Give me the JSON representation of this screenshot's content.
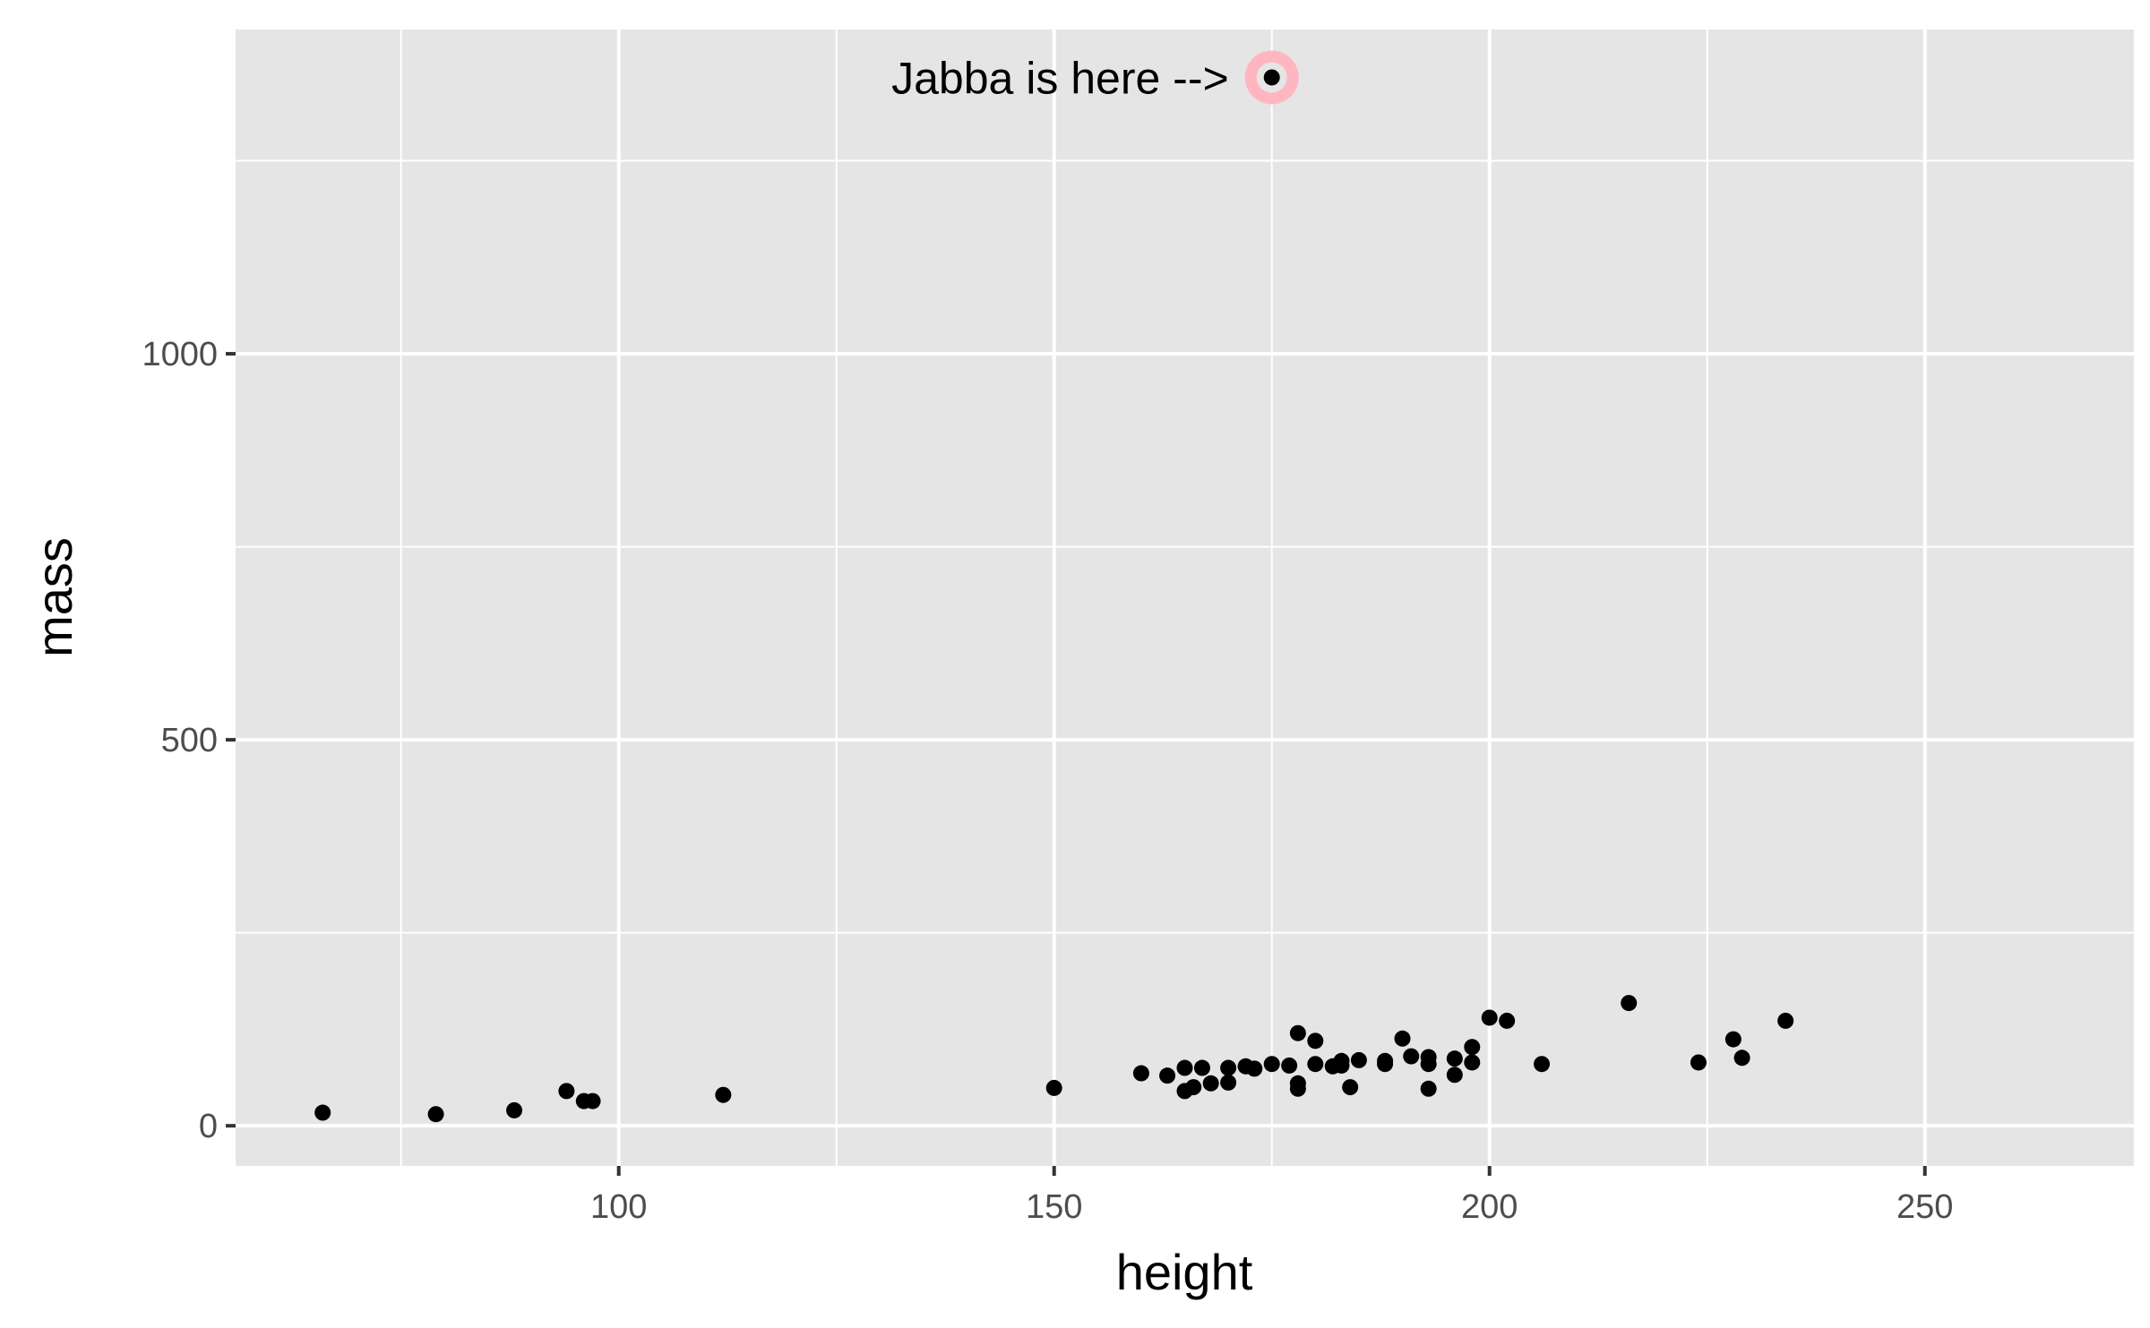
{
  "chart_data": {
    "type": "scatter",
    "title": "",
    "xlabel": "height",
    "ylabel": "mass",
    "xlim": [
      56,
      274
    ],
    "ylim": [
      -52,
      1420
    ],
    "x_major_ticks": [
      100,
      150,
      200,
      250
    ],
    "x_minor_ticks": [
      75,
      125,
      175,
      225
    ],
    "y_major_ticks": [
      0,
      500,
      1000
    ],
    "y_minor_ticks": [
      250,
      750,
      1250
    ],
    "grid": true,
    "legend": "none",
    "colors": {
      "panel_background": "#e5e5e5",
      "grid": "#ffffff",
      "point": "#000000",
      "highlight_ring": "#ffb6c1"
    },
    "annotation": {
      "text": "Jabba is here -->",
      "x": 175,
      "y": 1358
    },
    "highlight_point": {
      "x": 175,
      "y": 1358
    },
    "points": [
      {
        "x": 66,
        "y": 17
      },
      {
        "x": 79,
        "y": 15
      },
      {
        "x": 88,
        "y": 20
      },
      {
        "x": 94,
        "y": 45
      },
      {
        "x": 96,
        "y": 32
      },
      {
        "x": 97,
        "y": 32
      },
      {
        "x": 112,
        "y": 40
      },
      {
        "x": 150,
        "y": 49
      },
      {
        "x": 160,
        "y": 68
      },
      {
        "x": 163,
        "y": 65
      },
      {
        "x": 165,
        "y": 45
      },
      {
        "x": 165,
        "y": 75
      },
      {
        "x": 166,
        "y": 50
      },
      {
        "x": 167,
        "y": 75
      },
      {
        "x": 168,
        "y": 55
      },
      {
        "x": 170,
        "y": 56
      },
      {
        "x": 170,
        "y": 75
      },
      {
        "x": 172,
        "y": 77
      },
      {
        "x": 173,
        "y": 74
      },
      {
        "x": 175,
        "y": 80
      },
      {
        "x": 175,
        "y": 1358
      },
      {
        "x": 177,
        "y": 78
      },
      {
        "x": 178,
        "y": 48
      },
      {
        "x": 178,
        "y": 55
      },
      {
        "x": 178,
        "y": 120
      },
      {
        "x": 180,
        "y": 80
      },
      {
        "x": 180,
        "y": 110
      },
      {
        "x": 182,
        "y": 77
      },
      {
        "x": 183,
        "y": 78
      },
      {
        "x": 183,
        "y": 84
      },
      {
        "x": 184,
        "y": 50
      },
      {
        "x": 185,
        "y": 85
      },
      {
        "x": 188,
        "y": 80
      },
      {
        "x": 188,
        "y": 84
      },
      {
        "x": 190,
        "y": 113
      },
      {
        "x": 191,
        "y": 90
      },
      {
        "x": 193,
        "y": 48
      },
      {
        "x": 193,
        "y": 80
      },
      {
        "x": 193,
        "y": 89
      },
      {
        "x": 196,
        "y": 66
      },
      {
        "x": 196,
        "y": 87
      },
      {
        "x": 198,
        "y": 82
      },
      {
        "x": 198,
        "y": 102
      },
      {
        "x": 200,
        "y": 140
      },
      {
        "x": 202,
        "y": 136
      },
      {
        "x": 206,
        "y": 80
      },
      {
        "x": 216,
        "y": 159
      },
      {
        "x": 224,
        "y": 82
      },
      {
        "x": 228,
        "y": 112
      },
      {
        "x": 229,
        "y": 88
      },
      {
        "x": 234,
        "y": 136
      }
    ]
  }
}
